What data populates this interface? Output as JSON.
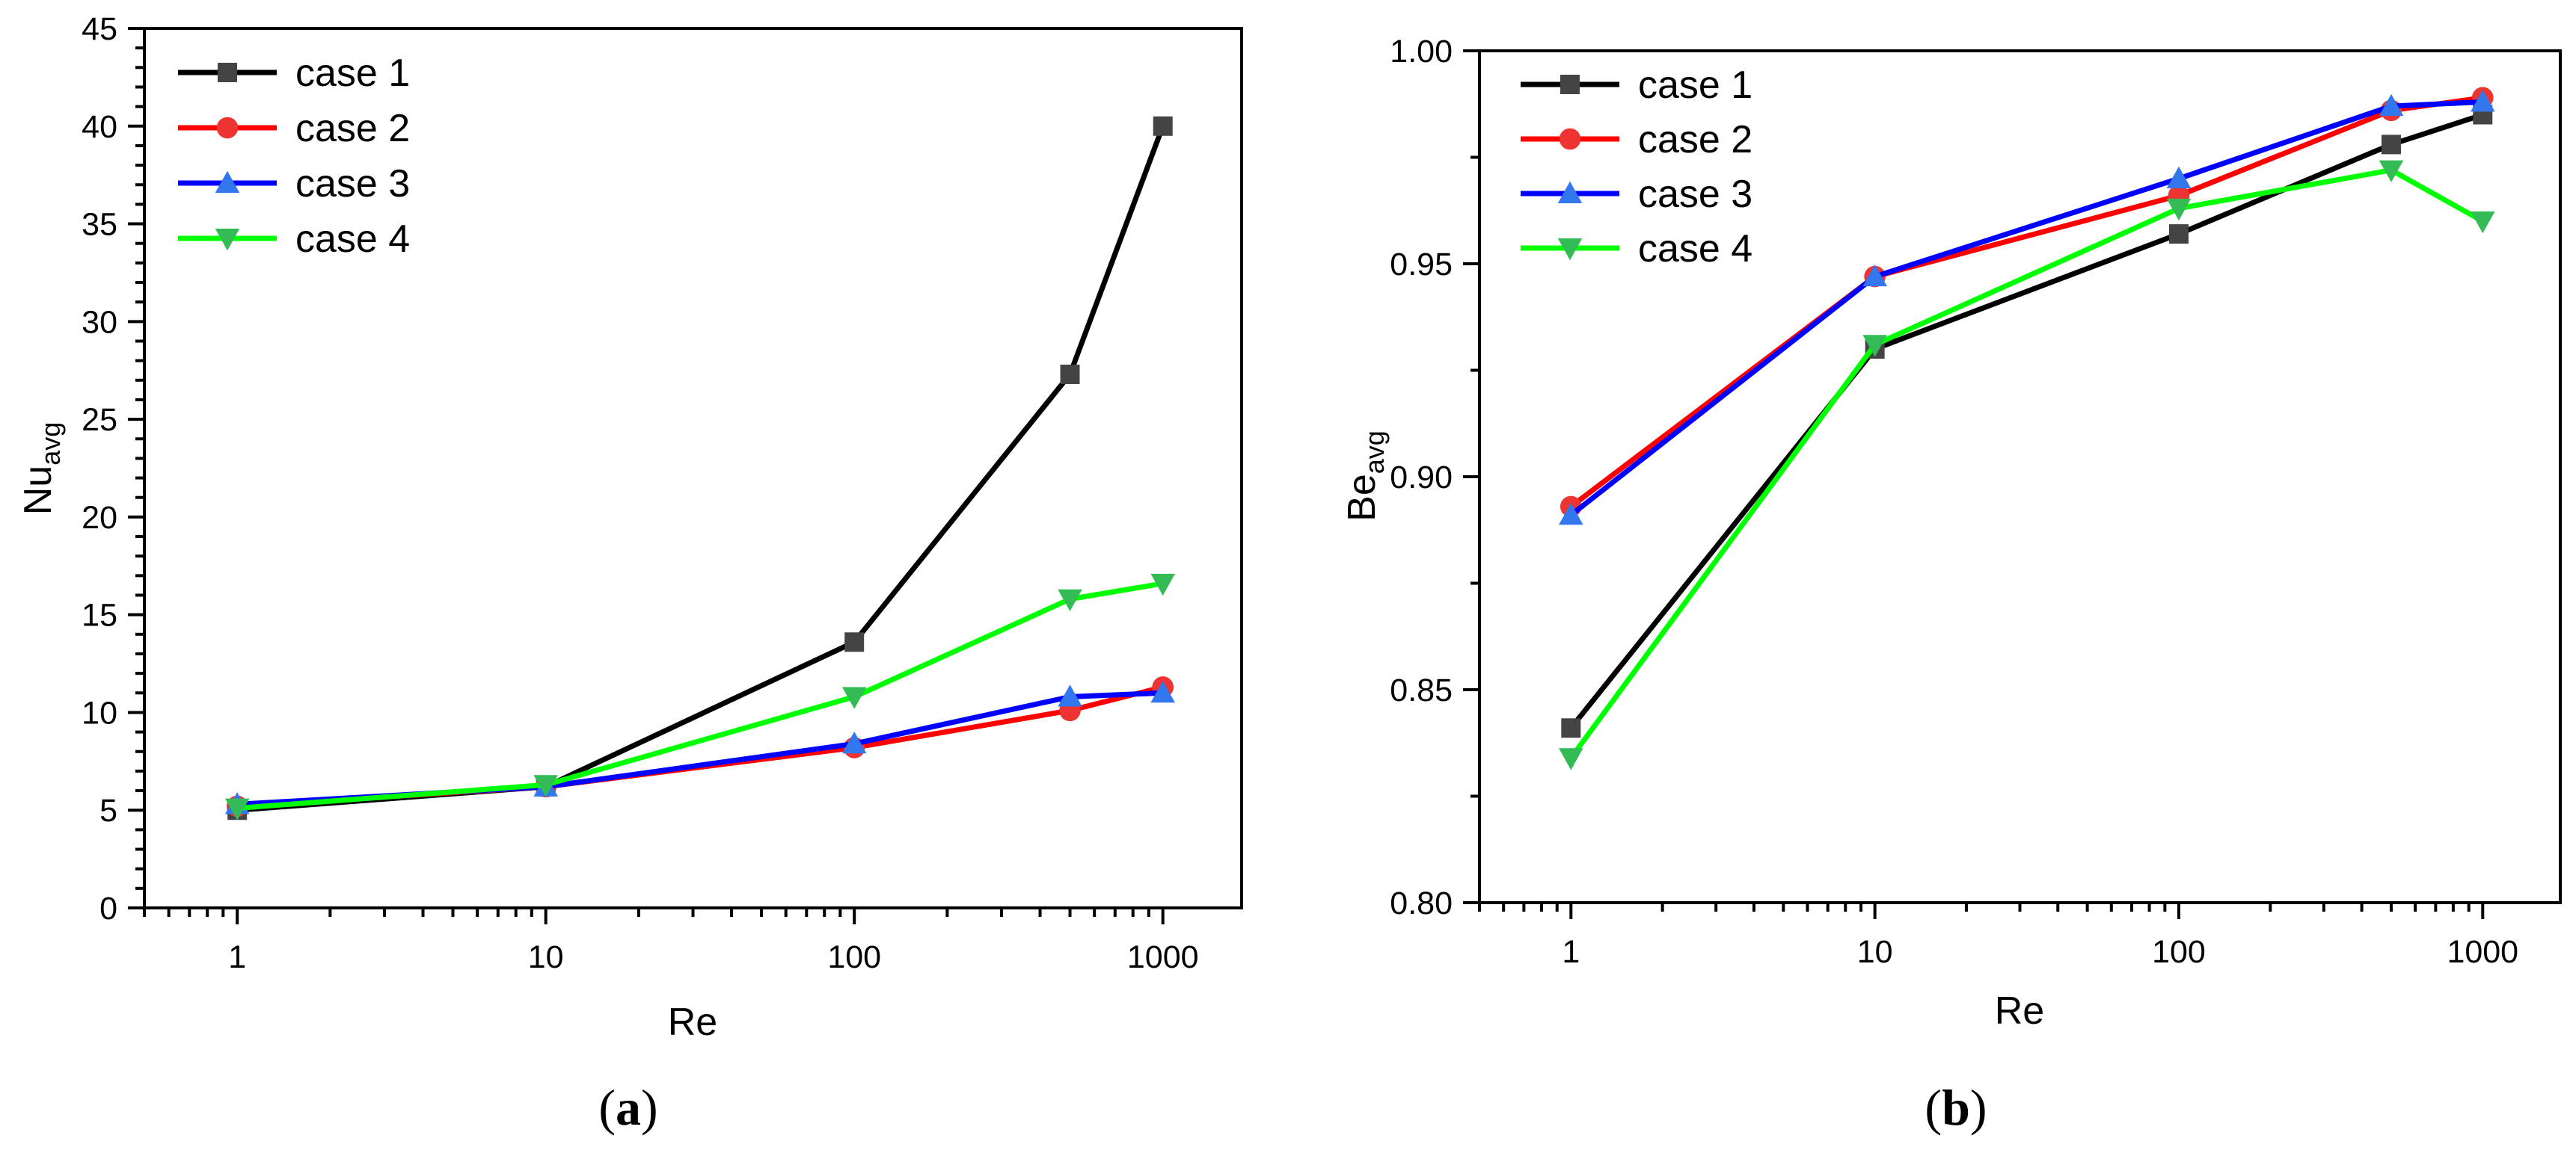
{
  "chart_data": [
    {
      "type": "line",
      "panel": "a",
      "xlabel": "Re",
      "ylabel_main": "Nu",
      "ylabel_sub": "avg",
      "xscale": "log",
      "xlim": [
        0.5,
        1800
      ],
      "ylim": [
        0,
        45
      ],
      "xticks": [
        1,
        10,
        100,
        1000
      ],
      "xtick_labels": [
        "1",
        "10",
        "100",
        "1000"
      ],
      "yticks": [
        0,
        5,
        10,
        15,
        20,
        25,
        30,
        35,
        40,
        45
      ],
      "ytick_labels": [
        "0",
        "5",
        "10",
        "15",
        "20",
        "25",
        "30",
        "35",
        "40",
        "45"
      ],
      "legend_position": "top-left",
      "x": [
        1,
        10,
        100,
        500,
        1000
      ],
      "series": [
        {
          "name": "case 1",
          "color": "#000000",
          "marker_color": "#444444",
          "marker": "square",
          "values": [
            5.0,
            6.2,
            13.6,
            27.3,
            40.0
          ]
        },
        {
          "name": "case 2",
          "color": "#ff0000",
          "marker_color": "#ee3333",
          "marker": "circle",
          "values": [
            5.2,
            6.2,
            8.2,
            10.1,
            11.3
          ]
        },
        {
          "name": "case 3",
          "color": "#0000ff",
          "marker_color": "#3377ee",
          "marker": "triangle-up",
          "values": [
            5.3,
            6.2,
            8.4,
            10.8,
            11.0
          ]
        },
        {
          "name": "case 4",
          "color": "#00ff00",
          "marker_color": "#33bb55",
          "marker": "triangle-down",
          "values": [
            5.1,
            6.3,
            10.8,
            15.8,
            16.6
          ]
        }
      ]
    },
    {
      "type": "line",
      "panel": "b",
      "xlabel": "Re",
      "ylabel_main": "Be",
      "ylabel_sub": "avg",
      "xscale": "log",
      "xlim": [
        0.5,
        1800
      ],
      "ylim": [
        0.8,
        1.0
      ],
      "xticks": [
        1,
        10,
        100,
        1000
      ],
      "xtick_labels": [
        "1",
        "10",
        "100",
        "1000"
      ],
      "yticks": [
        0.8,
        0.85,
        0.9,
        0.95,
        1.0
      ],
      "ytick_labels": [
        "0.80",
        "0.85",
        "0.90",
        "0.95",
        "1.00"
      ],
      "legend_position": "top-left",
      "x": [
        1,
        10,
        100,
        500,
        1000
      ],
      "series": [
        {
          "name": "case 1",
          "color": "#000000",
          "marker_color": "#444444",
          "marker": "square",
          "values": [
            0.841,
            0.93,
            0.957,
            0.978,
            0.985
          ]
        },
        {
          "name": "case 2",
          "color": "#ff0000",
          "marker_color": "#ee3333",
          "marker": "circle",
          "values": [
            0.893,
            0.947,
            0.966,
            0.986,
            0.989
          ]
        },
        {
          "name": "case 3",
          "color": "#0000ff",
          "marker_color": "#3377ee",
          "marker": "triangle-up",
          "values": [
            0.891,
            0.947,
            0.97,
            0.987,
            0.988
          ]
        },
        {
          "name": "case 4",
          "color": "#00ff00",
          "marker_color": "#33bb55",
          "marker": "triangle-down",
          "values": [
            0.834,
            0.931,
            0.963,
            0.972,
            0.96
          ]
        }
      ]
    }
  ],
  "captions": {
    "a": {
      "open": "(",
      "letter": "a",
      "close": ")"
    },
    "b": {
      "open": "(",
      "letter": "b",
      "close": ")"
    }
  }
}
